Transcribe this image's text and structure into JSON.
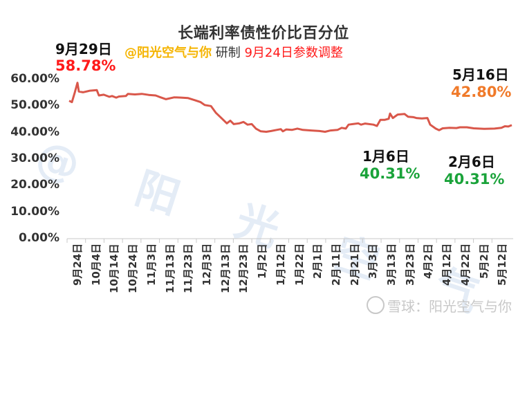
{
  "title": "长端利率债性价比百分位",
  "subtitle": {
    "handle": "@阳光空气与你",
    "maker": "研制",
    "note": "9月24日参数调整"
  },
  "annotations": [
    {
      "date": "9月29日",
      "value": "58.78%",
      "color": "#ff1a1a"
    },
    {
      "date": "1月6日",
      "value": "40.31%",
      "color": "#1aa33a"
    },
    {
      "date": "2月6日",
      "value": "40.31%",
      "color": "#1aa33a"
    },
    {
      "date": "5月16日",
      "value": "42.80%",
      "color": "#f07a2a"
    }
  ],
  "watermark": "@ 阳 光 空 气 与 你",
  "source_mark": "雪球：阳光空气与你",
  "colors": {
    "line": "#d9574a",
    "axis": "#c8c8c8"
  },
  "chart_data": {
    "type": "line",
    "title": "长端利率债性价比百分位",
    "xlabel": "",
    "ylabel": "",
    "ylim": [
      0,
      60
    ],
    "y_ticks": [
      "0.00%",
      "10.00%",
      "20.00%",
      "30.00%",
      "40.00%",
      "50.00%",
      "60.00%"
    ],
    "grid": false,
    "legend": "none",
    "x_ticks": [
      "9月24日",
      "10月4日",
      "10月14日",
      "10月24日",
      "11月3日",
      "11月13日",
      "11月23日",
      "12月3日",
      "12月13日",
      "12月23日",
      "1月2日",
      "1月12日",
      "1月22日",
      "2月1日",
      "2月11日",
      "2月21日",
      "3月3日",
      "3月13日",
      "3月23日",
      "4月2日",
      "4月12日",
      "4月22日",
      "5月2日",
      "5月12日"
    ],
    "series": [
      {
        "name": "长端利率债性价比百分位",
        "x": [
          "9月24日",
          "9月29日",
          "10月4日",
          "10月14日",
          "10月24日",
          "11月3日",
          "11月13日",
          "11月23日",
          "12月3日",
          "12月13日",
          "12月23日",
          "1月2日",
          "1月6日",
          "1月12日",
          "1月22日",
          "2月1日",
          "2月6日",
          "2月11日",
          "2月21日",
          "3月3日",
          "3月13日",
          "3月23日",
          "4月2日",
          "4月12日",
          "4月22日",
          "5月2日",
          "5月12日",
          "5月16日"
        ],
        "values": [
          52.0,
          58.78,
          55.5,
          54.0,
          54.3,
          54.0,
          53.3,
          52.5,
          50.5,
          45.0,
          43.5,
          41.0,
          40.31,
          41.0,
          41.5,
          40.8,
          40.31,
          41.0,
          43.2,
          43.5,
          47.0,
          46.0,
          46.0,
          42.0,
          42.0,
          41.8,
          41.8,
          42.8
        ]
      }
    ],
    "annotations": [
      {
        "x": "9月29日",
        "y": 58.78,
        "text": "58.78%"
      },
      {
        "x": "1月6日",
        "y": 40.31,
        "text": "40.31%"
      },
      {
        "x": "2月6日",
        "y": 40.31,
        "text": "40.31%"
      },
      {
        "x": "5月16日",
        "y": 42.8,
        "text": "42.80%"
      }
    ]
  }
}
